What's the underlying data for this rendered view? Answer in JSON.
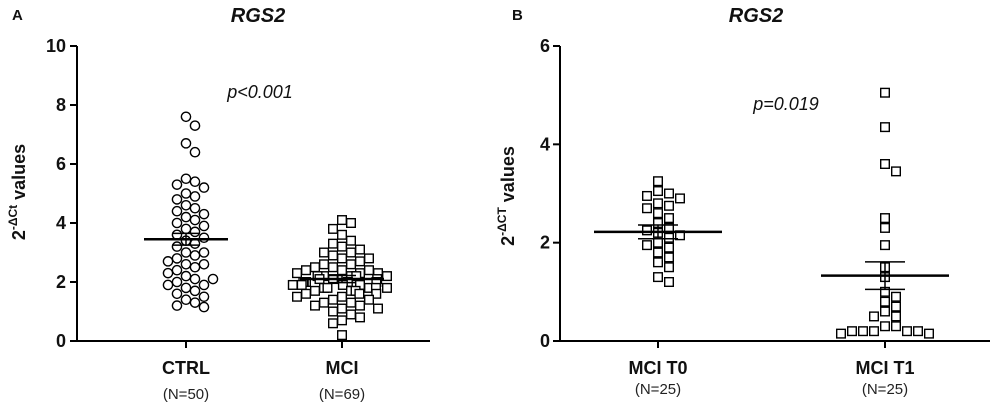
{
  "chart_data": [
    {
      "panel": "A",
      "type": "scatter",
      "title": "RGS2",
      "ylabel": "2",
      "ylabel_sup": "-ΔCt",
      "ylabel_suffix": " values",
      "ylim": [
        0,
        10
      ],
      "yticks": [
        "0",
        "2",
        "4",
        "6",
        "8",
        "10"
      ],
      "annotation": "p<0.001",
      "groups": [
        {
          "name": "CTRL",
          "n_label": "(N=50)",
          "marker": "circle",
          "mean": 3.45,
          "sem_low": 3.25,
          "sem_high": 3.65,
          "values": [
            7.6,
            7.3,
            6.7,
            6.4,
            5.5,
            5.4,
            5.3,
            5.2,
            5.0,
            4.9,
            4.8,
            4.6,
            4.5,
            4.4,
            4.2,
            4.1,
            4.0,
            3.9,
            3.8,
            3.7,
            3.6,
            3.5,
            3.4,
            3.3,
            3.2,
            3.0,
            2.9,
            2.8,
            2.7,
            2.6,
            2.6,
            2.5,
            2.4,
            2.3,
            2.2,
            2.1,
            2.0,
            1.9,
            1.9,
            1.8,
            1.7,
            1.6,
            1.5,
            1.4,
            1.3,
            1.2,
            1.15,
            3.0,
            4.3,
            2.1
          ]
        },
        {
          "name": "MCI",
          "n_label": "(N=69)",
          "marker": "square",
          "mean": 2.1,
          "sem_low": 1.98,
          "sem_high": 2.22,
          "values": [
            4.1,
            4.0,
            3.8,
            3.6,
            3.4,
            3.3,
            3.2,
            3.1,
            3.0,
            3.0,
            2.9,
            2.8,
            2.8,
            2.7,
            2.6,
            2.6,
            2.5,
            2.5,
            2.4,
            2.4,
            2.4,
            2.3,
            2.3,
            2.3,
            2.2,
            2.2,
            2.2,
            2.2,
            2.1,
            2.1,
            2.1,
            2.1,
            2.0,
            2.0,
            2.0,
            2.0,
            1.9,
            1.9,
            1.9,
            1.9,
            1.8,
            1.8,
            1.8,
            1.8,
            1.7,
            1.7,
            1.7,
            1.6,
            1.6,
            1.6,
            1.5,
            1.5,
            1.4,
            1.4,
            1.3,
            1.3,
            1.2,
            1.2,
            1.1,
            1.1,
            1.0,
            0.9,
            0.8,
            0.7,
            0.6,
            2.2,
            2.0,
            1.8,
            0.2
          ]
        }
      ]
    },
    {
      "panel": "B",
      "type": "scatter",
      "title": "RGS2",
      "ylabel": "2",
      "ylabel_sup": "-ΔCT",
      "ylabel_suffix": " values",
      "ylim": [
        0,
        6
      ],
      "yticks": [
        "0",
        "2",
        "4",
        "6"
      ],
      "annotation": "p=0.019",
      "groups": [
        {
          "name": "MCI T0",
          "n_label": "(N=25)",
          "marker": "square",
          "mean": 2.22,
          "sem_low": 2.08,
          "sem_high": 2.36,
          "values": [
            3.25,
            3.05,
            3.0,
            2.95,
            2.9,
            2.8,
            2.75,
            2.7,
            2.6,
            2.5,
            2.4,
            2.3,
            2.25,
            2.2,
            2.15,
            2.1,
            2.0,
            1.95,
            1.9,
            1.8,
            1.7,
            1.6,
            1.5,
            1.3,
            1.2
          ]
        },
        {
          "name": "MCI T1",
          "n_label": "(N=25)",
          "marker": "square",
          "mean": 1.33,
          "sem_low": 1.05,
          "sem_high": 1.61,
          "values": [
            5.05,
            4.35,
            3.6,
            3.45,
            2.5,
            2.3,
            1.95,
            1.5,
            1.3,
            1.0,
            0.9,
            0.8,
            0.7,
            0.6,
            0.5,
            0.5,
            0.3,
            0.3,
            0.2,
            0.2,
            0.2,
            0.2,
            0.15,
            0.15,
            0.2
          ]
        }
      ]
    }
  ]
}
